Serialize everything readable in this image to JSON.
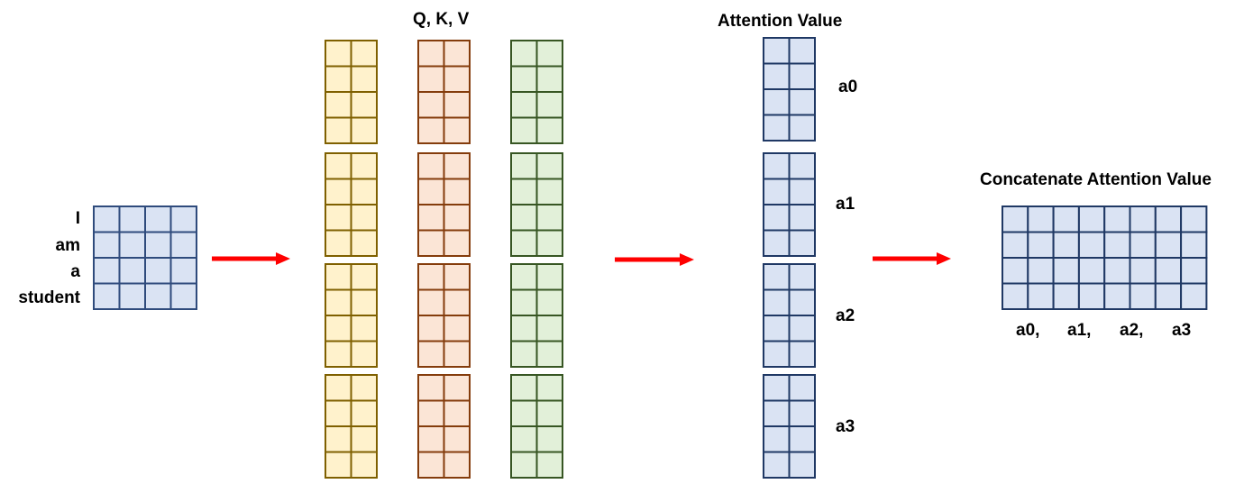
{
  "colors": {
    "input_fill": "#dae3f3",
    "input_stroke": "#2f4b7c",
    "q_fill": "#fff2cc",
    "q_stroke": "#7f6000",
    "k_fill": "#fbe5d6",
    "k_stroke": "#843c0c",
    "v_fill": "#e2f0d9",
    "v_stroke": "#375623",
    "attention_fill": "#dae3f3",
    "attention_stroke": "#1f3864",
    "arrow": "#ff0000"
  },
  "input": {
    "tokens": [
      "I",
      "am",
      "a",
      "student"
    ]
  },
  "qkv": {
    "title": "Q, K, V"
  },
  "attention": {
    "title": "Attention Value",
    "labels": [
      "a0",
      "a1",
      "a2",
      "a3"
    ]
  },
  "concat": {
    "title": "Concatenate Attention Value",
    "labels": [
      "a0,",
      "a1,",
      "a2,",
      "a3"
    ]
  }
}
